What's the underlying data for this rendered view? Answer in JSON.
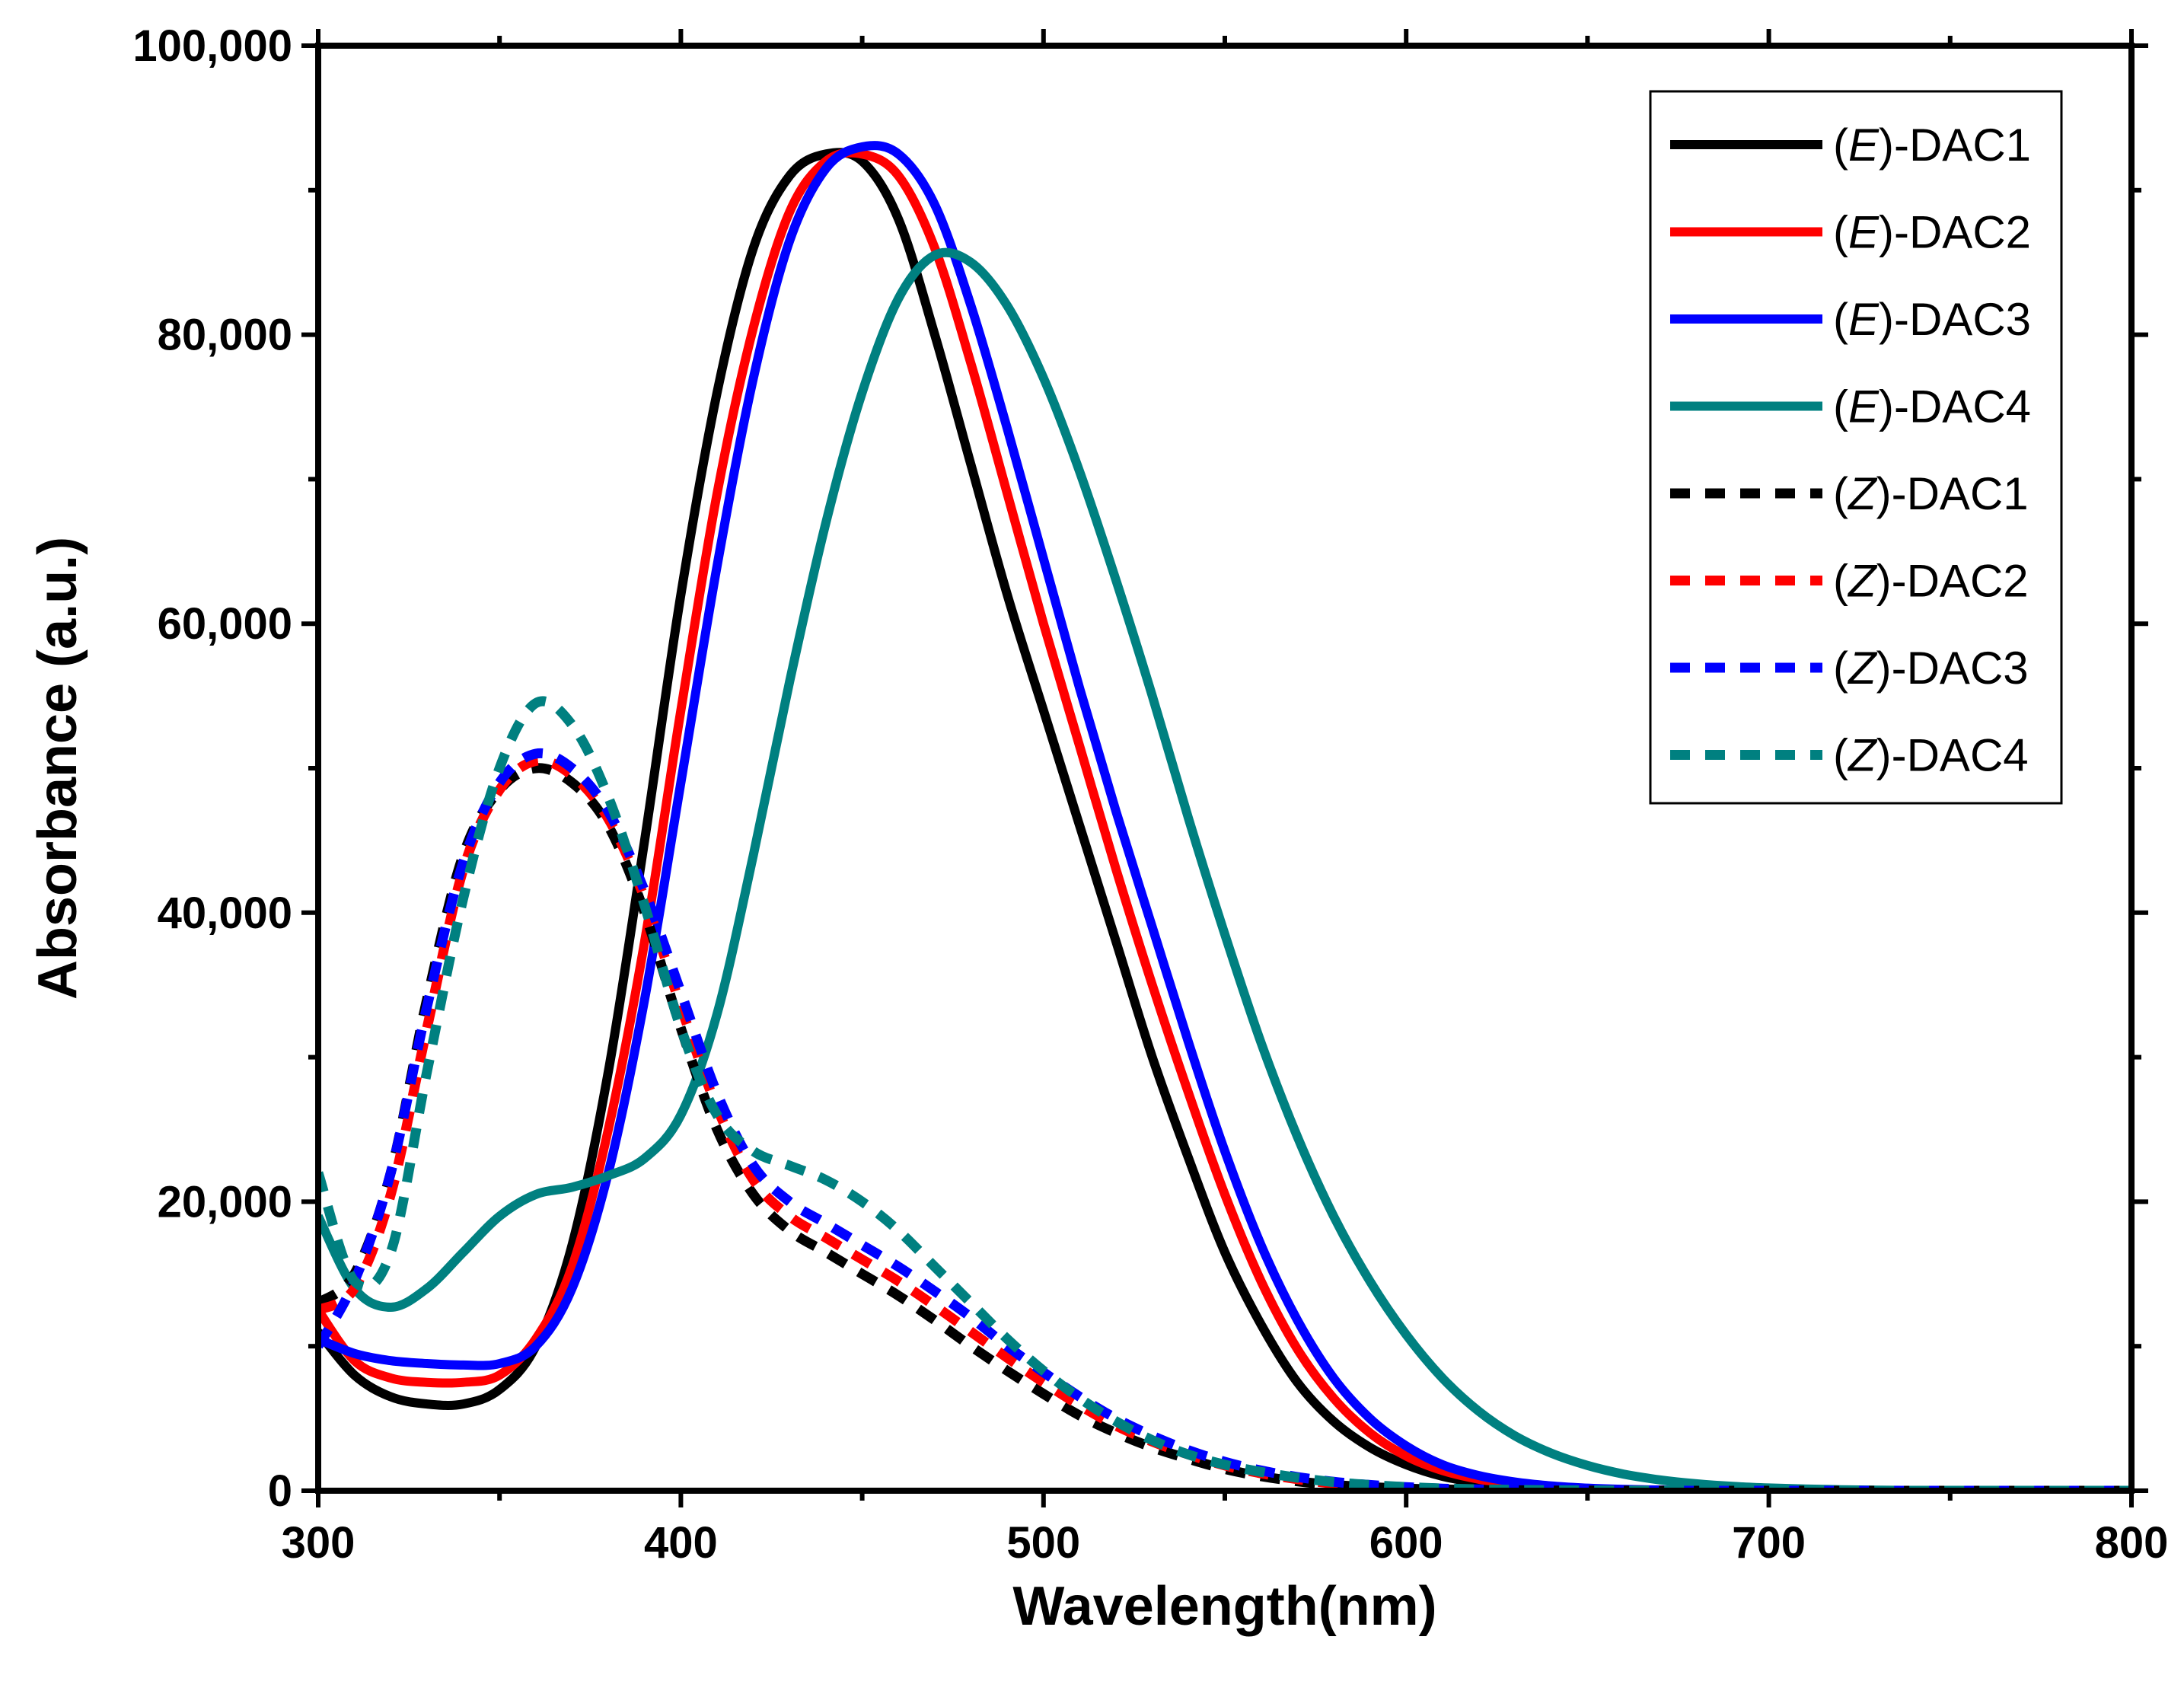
{
  "chart_data": {
    "type": "line",
    "title": "",
    "xlabel": "Wavelength(nm)",
    "ylabel": "Absorbance (a.u.)",
    "xlim": [
      300,
      800
    ],
    "ylim": [
      0,
      100000
    ],
    "xticks": [
      300,
      400,
      500,
      600,
      700,
      800
    ],
    "xtick_labels": [
      "300",
      "400",
      "500",
      "600",
      "700",
      "800"
    ],
    "yticks": [
      0,
      20000,
      40000,
      60000,
      80000,
      100000
    ],
    "ytick_labels": [
      "0",
      "20,000",
      "40,000",
      "60,000",
      "80,000",
      "100,000"
    ],
    "grid": false,
    "legend_position": "top-right",
    "x": [
      300,
      310,
      320,
      330,
      340,
      350,
      360,
      370,
      380,
      390,
      400,
      410,
      420,
      430,
      440,
      450,
      460,
      470,
      480,
      490,
      500,
      510,
      520,
      530,
      540,
      550,
      560,
      570,
      580,
      590,
      600,
      610,
      620,
      630,
      640,
      650,
      660,
      670,
      680,
      690,
      700,
      710,
      720,
      730,
      740,
      750,
      760,
      770,
      780,
      790,
      800
    ],
    "series": [
      {
        "name": "(E)-DAC1",
        "prefix": "(",
        "isomer": "E",
        "suffix": ")-DAC1",
        "color": "#000000",
        "dash": "solid",
        "values": [
          11000,
          8000,
          6500,
          6000,
          6000,
          7000,
          10000,
          17000,
          29000,
          45000,
          62000,
          76000,
          86000,
          91000,
          92500,
          92000,
          88000,
          80000,
          71000,
          62000,
          54000,
          46000,
          38000,
          30000,
          23000,
          16500,
          11500,
          7500,
          4800,
          3000,
          1800,
          1000,
          550,
          300,
          160,
          90,
          50,
          30,
          15,
          8,
          5,
          2,
          1,
          0,
          0,
          0,
          0,
          0,
          0,
          0,
          0
        ]
      },
      {
        "name": "(E)-DAC2",
        "prefix": "(",
        "isomer": "E",
        "suffix": ")-DAC2",
        "color": "#ff0000",
        "dash": "solid",
        "values": [
          12500,
          9000,
          7800,
          7500,
          7500,
          8000,
          10500,
          15500,
          25000,
          38000,
          54000,
          69000,
          80500,
          88500,
          92000,
          92500,
          91000,
          86000,
          78000,
          69000,
          60000,
          51500,
          43000,
          35000,
          27500,
          20500,
          14500,
          9800,
          6400,
          4000,
          2400,
          1400,
          800,
          450,
          240,
          130,
          70,
          35,
          18,
          9,
          5,
          2,
          1,
          0,
          0,
          0,
          0,
          0,
          0,
          0,
          0
        ]
      },
      {
        "name": "(E)-DAC3",
        "prefix": "(",
        "isomer": "E",
        "suffix": ")-DAC3",
        "color": "#0000ff",
        "dash": "solid",
        "values": [
          10500,
          9500,
          9000,
          8800,
          8700,
          8800,
          10000,
          14000,
          22000,
          34000,
          49000,
          64000,
          77000,
          86500,
          91500,
          93000,
          92500,
          89000,
          82000,
          73500,
          64500,
          55500,
          47000,
          39000,
          31000,
          23500,
          17000,
          11800,
          7800,
          5000,
          3100,
          1800,
          1050,
          600,
          330,
          180,
          95,
          50,
          25,
          12,
          6,
          3,
          1,
          0,
          0,
          0,
          0,
          0,
          0,
          0,
          0
        ]
      },
      {
        "name": "(E)-DAC4",
        "prefix": "(",
        "isomer": "E",
        "suffix": ")-DAC4",
        "color": "#008080",
        "dash": "solid",
        "values": [
          19000,
          14000,
          12700,
          14000,
          16500,
          19000,
          20500,
          21000,
          21800,
          23000,
          26000,
          33000,
          44000,
          56000,
          67000,
          76000,
          82500,
          85500,
          85000,
          82000,
          77000,
          70500,
          63000,
          55000,
          46500,
          38500,
          31000,
          24500,
          19000,
          14500,
          10800,
          7800,
          5500,
          3800,
          2600,
          1750,
          1150,
          750,
          480,
          300,
          190,
          115,
          70,
          40,
          22,
          12,
          6,
          3,
          1,
          0,
          0
        ]
      },
      {
        "name": "(Z)-DAC1",
        "prefix": "(",
        "isomer": "Z",
        "suffix": ")-DAC1",
        "color": "#000000",
        "dash": "dashed",
        "values": [
          13000,
          15000,
          22000,
          34000,
          44000,
          48500,
          50000,
          49000,
          46000,
          40000,
          32000,
          25000,
          20500,
          18000,
          16500,
          15000,
          13500,
          11800,
          10000,
          8300,
          6700,
          5200,
          4000,
          3000,
          2200,
          1500,
          1000,
          650,
          400,
          250,
          150,
          90,
          50,
          30,
          15,
          8,
          4,
          2,
          1,
          0,
          0,
          0,
          0,
          0,
          0,
          0,
          0,
          0,
          0,
          0,
          0
        ]
      },
      {
        "name": "(Z)-DAC2",
        "prefix": "(",
        "isomer": "Z",
        "suffix": ")-DAC2",
        "color": "#ff0000",
        "dash": "dashed",
        "values": [
          12500,
          14000,
          20500,
          32000,
          43000,
          48500,
          50500,
          49500,
          46500,
          41000,
          33500,
          26500,
          21500,
          19000,
          17500,
          16000,
          14500,
          12800,
          11000,
          9200,
          7500,
          5900,
          4500,
          3400,
          2500,
          1750,
          1200,
          800,
          500,
          320,
          200,
          120,
          70,
          40,
          20,
          10,
          5,
          2,
          1,
          0,
          0,
          0,
          0,
          0,
          0,
          0,
          0,
          0,
          0,
          0,
          0
        ]
      },
      {
        "name": "(Z)-DAC3",
        "prefix": "(",
        "isomer": "Z",
        "suffix": ")-DAC3",
        "color": "#0000ff",
        "dash": "dashed",
        "values": [
          10000,
          14500,
          22000,
          33500,
          43500,
          49000,
          51000,
          50000,
          47000,
          41500,
          34500,
          27500,
          22500,
          20000,
          18500,
          17000,
          15500,
          13800,
          12000,
          10000,
          8200,
          6500,
          5000,
          3800,
          2800,
          2000,
          1400,
          950,
          620,
          400,
          250,
          150,
          90,
          50,
          25,
          12,
          6,
          3,
          1,
          0,
          0,
          0,
          0,
          0,
          0,
          0,
          0,
          0,
          0,
          0,
          0
        ]
      },
      {
        "name": "(Z)-DAC4",
        "prefix": "(",
        "isomer": "Z",
        "suffix": ")-DAC4",
        "color": "#008080",
        "dash": "dashed",
        "values": [
          22000,
          14500,
          16500,
          29000,
          41000,
          50000,
          54500,
          53000,
          48000,
          40500,
          32000,
          26000,
          23500,
          22500,
          21500,
          20000,
          18000,
          15500,
          13000,
          10500,
          8300,
          6400,
          4800,
          3500,
          2500,
          1800,
          1300,
          900,
          600,
          400,
          260,
          160,
          100,
          60,
          35,
          20,
          10,
          5,
          2,
          1,
          0,
          0,
          0,
          0,
          0,
          0,
          0,
          0,
          0,
          0,
          0
        ]
      }
    ]
  }
}
